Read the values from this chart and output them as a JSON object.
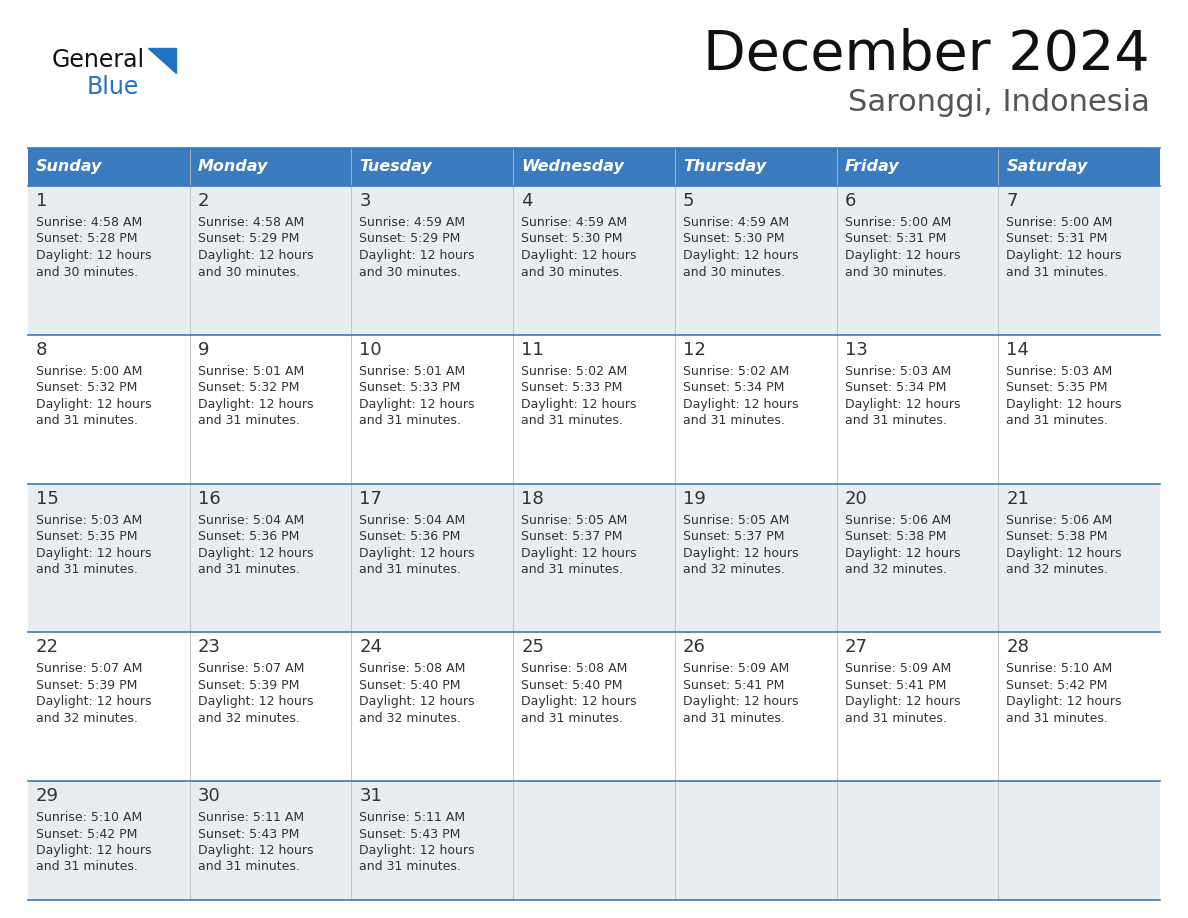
{
  "title": "December 2024",
  "subtitle": "Saronggi, Indonesia",
  "header_color": "#3a7abf",
  "header_text_color": "#ffffff",
  "odd_row_bg": "#e8edf2",
  "even_row_bg": "#ffffff",
  "border_color": "#3a7abf",
  "text_color": "#333333",
  "days_of_week": [
    "Sunday",
    "Monday",
    "Tuesday",
    "Wednesday",
    "Thursday",
    "Friday",
    "Saturday"
  ],
  "logo_general_color": "#111111",
  "logo_blue_color": "#2272c3",
  "calendar_data": [
    [
      {
        "day": 1,
        "sunrise": "4:58 AM",
        "sunset": "5:28 PM",
        "daylight": "12 hours",
        "daylight2": "and 30 minutes."
      },
      {
        "day": 2,
        "sunrise": "4:58 AM",
        "sunset": "5:29 PM",
        "daylight": "12 hours",
        "daylight2": "and 30 minutes."
      },
      {
        "day": 3,
        "sunrise": "4:59 AM",
        "sunset": "5:29 PM",
        "daylight": "12 hours",
        "daylight2": "and 30 minutes."
      },
      {
        "day": 4,
        "sunrise": "4:59 AM",
        "sunset": "5:30 PM",
        "daylight": "12 hours",
        "daylight2": "and 30 minutes."
      },
      {
        "day": 5,
        "sunrise": "4:59 AM",
        "sunset": "5:30 PM",
        "daylight": "12 hours",
        "daylight2": "and 30 minutes."
      },
      {
        "day": 6,
        "sunrise": "5:00 AM",
        "sunset": "5:31 PM",
        "daylight": "12 hours",
        "daylight2": "and 30 minutes."
      },
      {
        "day": 7,
        "sunrise": "5:00 AM",
        "sunset": "5:31 PM",
        "daylight": "12 hours",
        "daylight2": "and 31 minutes."
      }
    ],
    [
      {
        "day": 8,
        "sunrise": "5:00 AM",
        "sunset": "5:32 PM",
        "daylight": "12 hours",
        "daylight2": "and 31 minutes."
      },
      {
        "day": 9,
        "sunrise": "5:01 AM",
        "sunset": "5:32 PM",
        "daylight": "12 hours",
        "daylight2": "and 31 minutes."
      },
      {
        "day": 10,
        "sunrise": "5:01 AM",
        "sunset": "5:33 PM",
        "daylight": "12 hours",
        "daylight2": "and 31 minutes."
      },
      {
        "day": 11,
        "sunrise": "5:02 AM",
        "sunset": "5:33 PM",
        "daylight": "12 hours",
        "daylight2": "and 31 minutes."
      },
      {
        "day": 12,
        "sunrise": "5:02 AM",
        "sunset": "5:34 PM",
        "daylight": "12 hours",
        "daylight2": "and 31 minutes."
      },
      {
        "day": 13,
        "sunrise": "5:03 AM",
        "sunset": "5:34 PM",
        "daylight": "12 hours",
        "daylight2": "and 31 minutes."
      },
      {
        "day": 14,
        "sunrise": "5:03 AM",
        "sunset": "5:35 PM",
        "daylight": "12 hours",
        "daylight2": "and 31 minutes."
      }
    ],
    [
      {
        "day": 15,
        "sunrise": "5:03 AM",
        "sunset": "5:35 PM",
        "daylight": "12 hours",
        "daylight2": "and 31 minutes."
      },
      {
        "day": 16,
        "sunrise": "5:04 AM",
        "sunset": "5:36 PM",
        "daylight": "12 hours",
        "daylight2": "and 31 minutes."
      },
      {
        "day": 17,
        "sunrise": "5:04 AM",
        "sunset": "5:36 PM",
        "daylight": "12 hours",
        "daylight2": "and 31 minutes."
      },
      {
        "day": 18,
        "sunrise": "5:05 AM",
        "sunset": "5:37 PM",
        "daylight": "12 hours",
        "daylight2": "and 31 minutes."
      },
      {
        "day": 19,
        "sunrise": "5:05 AM",
        "sunset": "5:37 PM",
        "daylight": "12 hours",
        "daylight2": "and 32 minutes."
      },
      {
        "day": 20,
        "sunrise": "5:06 AM",
        "sunset": "5:38 PM",
        "daylight": "12 hours",
        "daylight2": "and 32 minutes."
      },
      {
        "day": 21,
        "sunrise": "5:06 AM",
        "sunset": "5:38 PM",
        "daylight": "12 hours",
        "daylight2": "and 32 minutes."
      }
    ],
    [
      {
        "day": 22,
        "sunrise": "5:07 AM",
        "sunset": "5:39 PM",
        "daylight": "12 hours",
        "daylight2": "and 32 minutes."
      },
      {
        "day": 23,
        "sunrise": "5:07 AM",
        "sunset": "5:39 PM",
        "daylight": "12 hours",
        "daylight2": "and 32 minutes."
      },
      {
        "day": 24,
        "sunrise": "5:08 AM",
        "sunset": "5:40 PM",
        "daylight": "12 hours",
        "daylight2": "and 32 minutes."
      },
      {
        "day": 25,
        "sunrise": "5:08 AM",
        "sunset": "5:40 PM",
        "daylight": "12 hours",
        "daylight2": "and 31 minutes."
      },
      {
        "day": 26,
        "sunrise": "5:09 AM",
        "sunset": "5:41 PM",
        "daylight": "12 hours",
        "daylight2": "and 31 minutes."
      },
      {
        "day": 27,
        "sunrise": "5:09 AM",
        "sunset": "5:41 PM",
        "daylight": "12 hours",
        "daylight2": "and 31 minutes."
      },
      {
        "day": 28,
        "sunrise": "5:10 AM",
        "sunset": "5:42 PM",
        "daylight": "12 hours",
        "daylight2": "and 31 minutes."
      }
    ],
    [
      {
        "day": 29,
        "sunrise": "5:10 AM",
        "sunset": "5:42 PM",
        "daylight": "12 hours",
        "daylight2": "and 31 minutes."
      },
      {
        "day": 30,
        "sunrise": "5:11 AM",
        "sunset": "5:43 PM",
        "daylight": "12 hours",
        "daylight2": "and 31 minutes."
      },
      {
        "day": 31,
        "sunrise": "5:11 AM",
        "sunset": "5:43 PM",
        "daylight": "12 hours",
        "daylight2": "and 31 minutes."
      },
      null,
      null,
      null,
      null
    ]
  ]
}
